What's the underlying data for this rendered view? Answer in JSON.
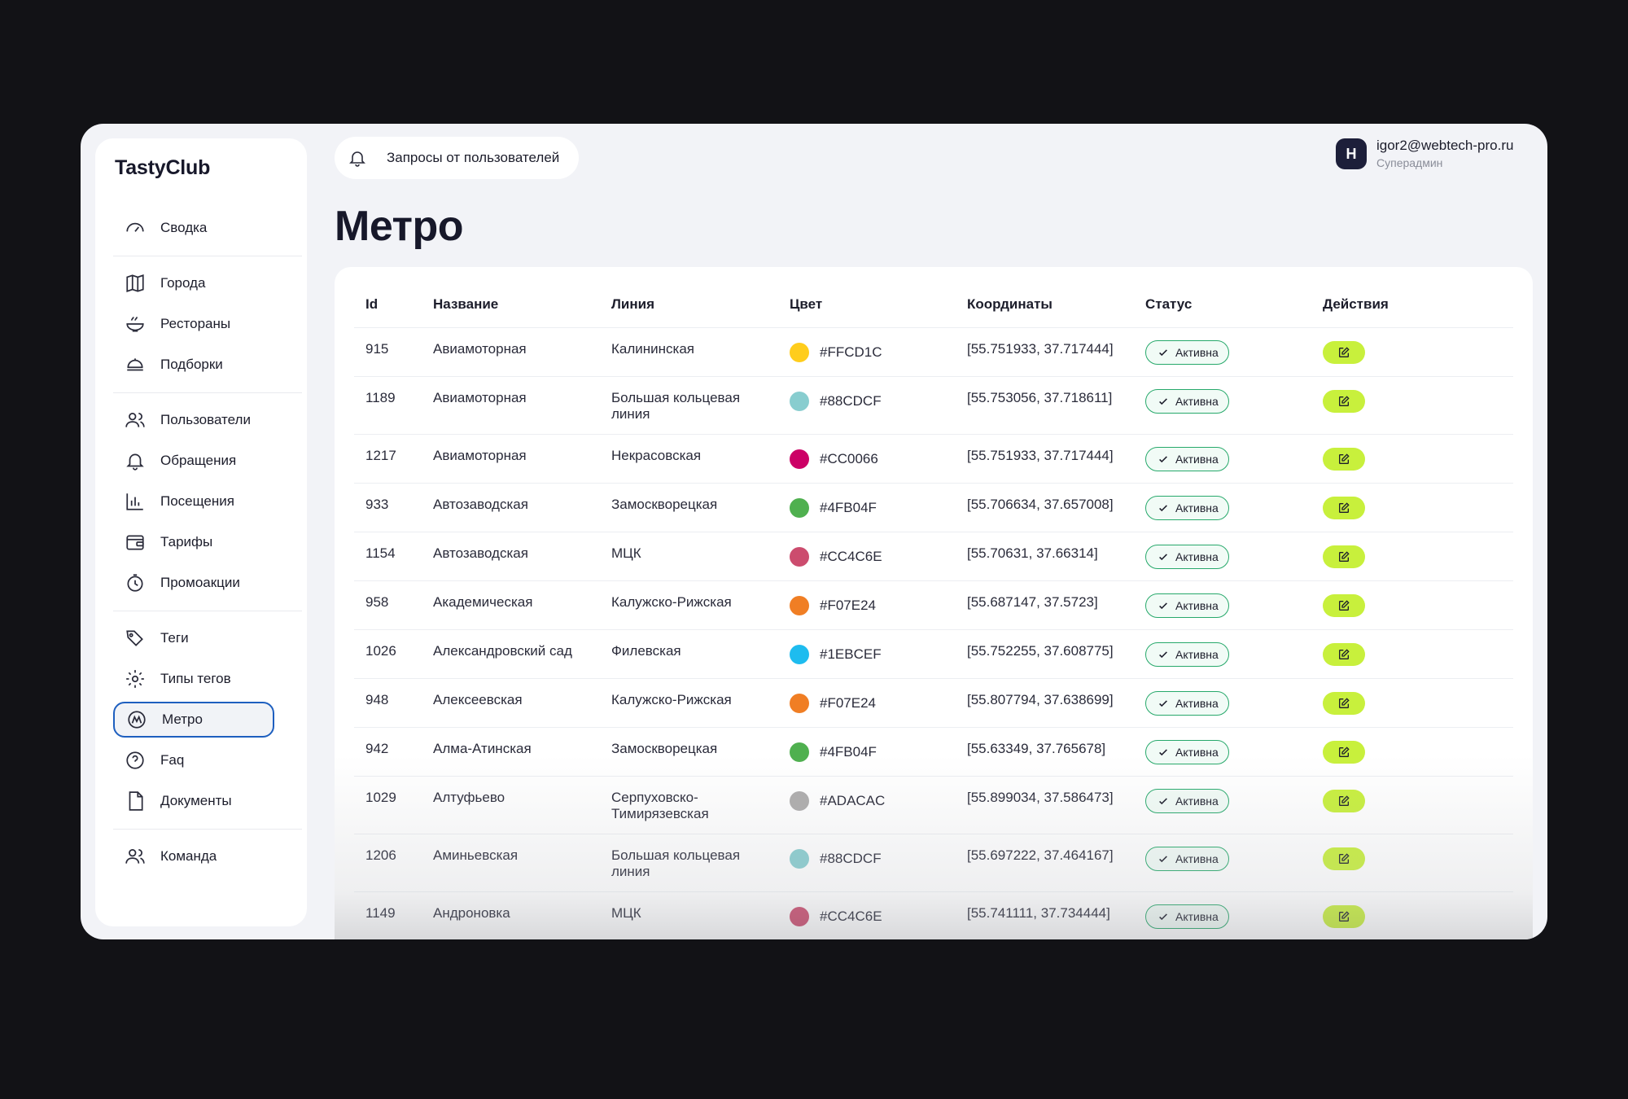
{
  "app": {
    "logo": "TastyClub"
  },
  "sidebar": {
    "items": [
      {
        "label": "Сводка",
        "icon": "gauge-icon"
      },
      {
        "label": "Города",
        "icon": "map-icon"
      },
      {
        "label": "Рестораны",
        "icon": "bowl-icon"
      },
      {
        "label": "Подборки",
        "icon": "dish-icon"
      },
      {
        "label": "Пользователи",
        "icon": "users-icon"
      },
      {
        "label": "Обращения",
        "icon": "bell-icon"
      },
      {
        "label": "Посещения",
        "icon": "bar-chart-icon"
      },
      {
        "label": "Тарифы",
        "icon": "wallet-icon"
      },
      {
        "label": "Промоакции",
        "icon": "timer-icon"
      },
      {
        "label": "Теги",
        "icon": "tags-icon"
      },
      {
        "label": "Типы тегов",
        "icon": "gear-icon"
      },
      {
        "label": "Метро",
        "icon": "metro-icon"
      },
      {
        "label": "Faq",
        "icon": "question-icon"
      },
      {
        "label": "Документы",
        "icon": "document-icon"
      },
      {
        "label": "Команда",
        "icon": "team-icon"
      }
    ],
    "active": "Метро"
  },
  "topbar": {
    "requests_label": "Запросы от пользователей",
    "user": {
      "avatar_letter": "H",
      "email": "igor2@webtech-pro.ru",
      "role": "Суперадмин"
    }
  },
  "page": {
    "title": "Метро"
  },
  "table": {
    "columns": [
      "Id",
      "Название",
      "Линия",
      "Цвет",
      "Координаты",
      "Статус",
      "Действия"
    ],
    "rows": [
      {
        "id": "915",
        "name": "Авиамоторная",
        "line": "Калининская",
        "color": "#FFCD1C",
        "coords": "[55.751933, 37.717444]",
        "status": "Активна"
      },
      {
        "id": "1189",
        "name": "Авиамоторная",
        "line": "Большая кольцевая линия",
        "color": "#88CDCF",
        "coords": "[55.753056, 37.718611]",
        "status": "Активна"
      },
      {
        "id": "1217",
        "name": "Авиамоторная",
        "line": "Некрасовская",
        "color": "#CC0066",
        "coords": "[55.751933, 37.717444]",
        "status": "Активна"
      },
      {
        "id": "933",
        "name": "Автозаводская",
        "line": "Замоскворецкая",
        "color": "#4FB04F",
        "coords": "[55.706634, 37.657008]",
        "status": "Активна"
      },
      {
        "id": "1154",
        "name": "Автозаводская",
        "line": "МЦК",
        "color": "#CC4C6E",
        "coords": "[55.70631, 37.66314]",
        "status": "Активна"
      },
      {
        "id": "958",
        "name": "Академическая",
        "line": "Калужско-Рижская",
        "color": "#F07E24",
        "coords": "[55.687147, 37.5723]",
        "status": "Активна"
      },
      {
        "id": "1026",
        "name": "Александровский сад",
        "line": "Филевская",
        "color": "#1EBCEF",
        "coords": "[55.752255, 37.608775]",
        "status": "Активна"
      },
      {
        "id": "948",
        "name": "Алексеевская",
        "line": "Калужско-Рижская",
        "color": "#F07E24",
        "coords": "[55.807794, 37.638699]",
        "status": "Активна"
      },
      {
        "id": "942",
        "name": "Алма-Атинская",
        "line": "Замоскворецкая",
        "color": "#4FB04F",
        "coords": "[55.63349, 37.765678]",
        "status": "Активна"
      },
      {
        "id": "1029",
        "name": "Алтуфьево",
        "line": "Серпуховско-Тимирязевская",
        "color": "#ADACAC",
        "coords": "[55.899034, 37.586473]",
        "status": "Активна"
      },
      {
        "id": "1206",
        "name": "Аминьевская",
        "line": "Большая кольцевая линия",
        "color": "#88CDCF",
        "coords": "[55.697222, 37.464167]",
        "status": "Активна"
      },
      {
        "id": "1149",
        "name": "Андроновка",
        "line": "МЦК",
        "color": "#CC4C6E",
        "coords": "[55.741111, 37.734444]",
        "status": "Активна"
      }
    ]
  },
  "colors": {
    "accent": "#C8F03C",
    "active_border": "#1E5FBF",
    "status_border": "#27A96B",
    "background": "#121216"
  }
}
